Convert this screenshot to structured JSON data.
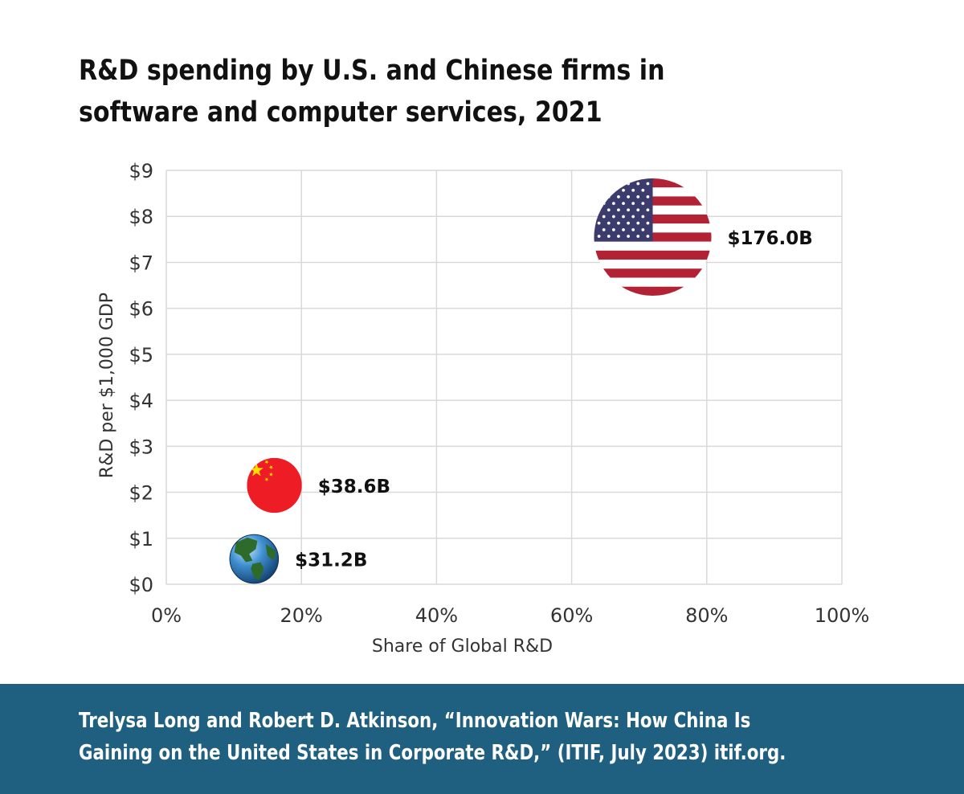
{
  "chart_data": {
    "type": "scatter",
    "title": "R&D spending by U.S. and Chinese firms in software and computer services, 2021",
    "xlabel": "Share of Global R&D",
    "ylabel": "R&D per $1,000 GDP",
    "xlim": [
      0,
      100
    ],
    "ylim": [
      0,
      9
    ],
    "x_ticks": [
      "0%",
      "20%",
      "40%",
      "60%",
      "80%",
      "100%"
    ],
    "y_ticks": [
      "$0",
      "$1",
      "$2",
      "$3",
      "$4",
      "$5",
      "$6",
      "$7",
      "$8",
      "$9"
    ],
    "grid": true,
    "bubble_sizes_shown_as_labels": true,
    "points": [
      {
        "marker": "globe-icon",
        "x": 13,
        "y": 0.55,
        "size": 31.2,
        "label": "$31.2B"
      },
      {
        "marker": "china-flag-icon",
        "x": 16,
        "y": 2.15,
        "size": 38.6,
        "label": "$38.6B"
      },
      {
        "marker": "us-flag-icon",
        "x": 72,
        "y": 7.55,
        "size": 176.0,
        "label": "$176.0B"
      }
    ]
  },
  "footer": {
    "citation": "Trelysa Long and Robert D. Atkinson, “Innovation Wars: How China Is Gaining on the United States in Corporate R&D,” (ITIF, July 2023) itif.org."
  },
  "colors": {
    "footer_bg": "#1f5f7f",
    "grid": "#d9d9d9",
    "us_red": "#b22234",
    "us_blue": "#3c3b6e",
    "china_red": "#ee1c25",
    "china_star": "#ffde00",
    "globe_ocean": "#2f7fc1",
    "globe_land": "#2e6b2a"
  }
}
